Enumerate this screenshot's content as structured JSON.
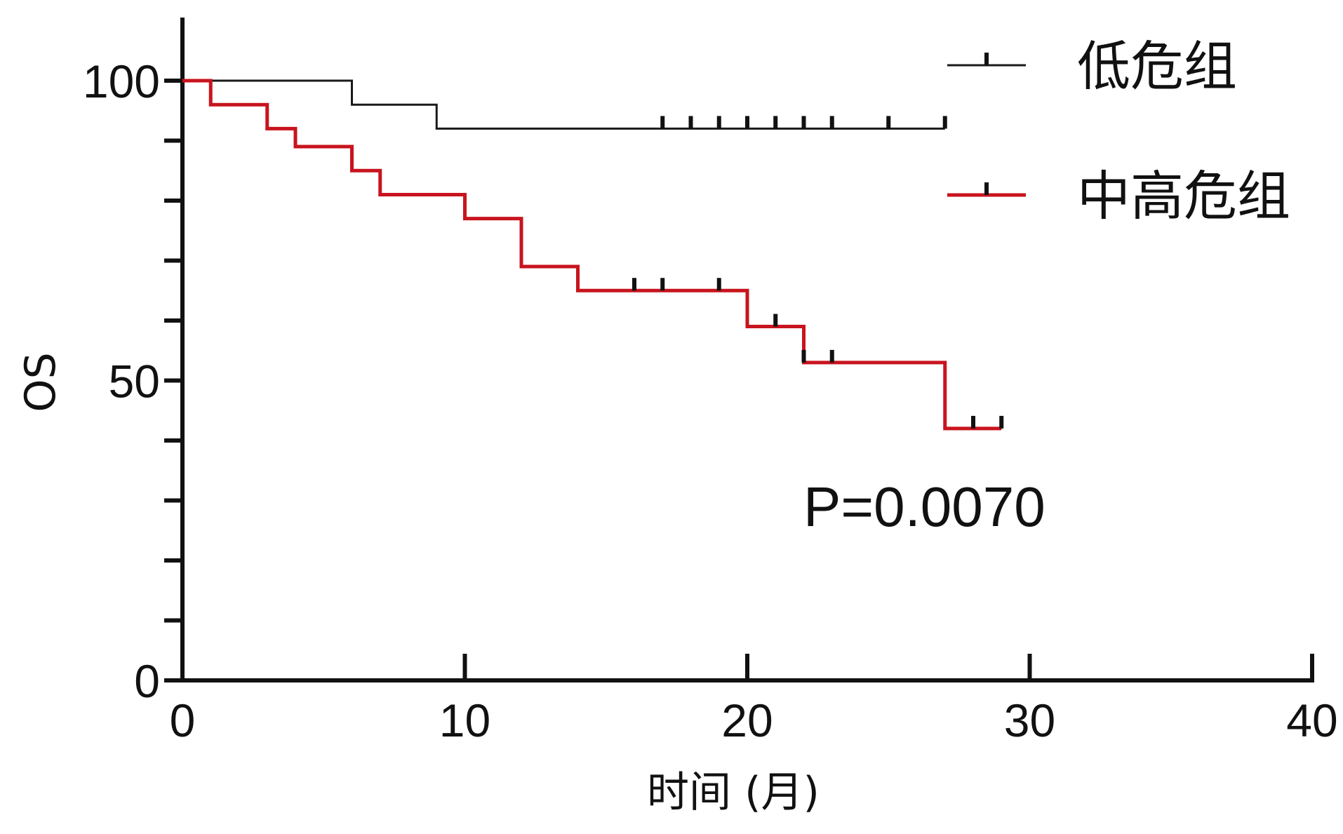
{
  "chart_data": {
    "type": "line",
    "subtype": "kaplan-meier",
    "title": "",
    "xlabel": "时间 (月)",
    "ylabel": "OS",
    "xlim": [
      0,
      40
    ],
    "ylim": [
      0,
      100
    ],
    "x_ticks": [
      0,
      10,
      20,
      30,
      40
    ],
    "y_ticks": [
      0,
      50,
      100
    ],
    "grid": false,
    "legend_position": "top-right",
    "annotation": "P=0.0070",
    "series": [
      {
        "name": "低危组",
        "color": "#1a1a1a",
        "steps": [
          [
            0,
            100
          ],
          [
            6,
            96
          ],
          [
            9,
            92
          ],
          [
            27,
            92
          ]
        ],
        "censored": [
          [
            17,
            92
          ],
          [
            18,
            92
          ],
          [
            19,
            92
          ],
          [
            20,
            92
          ],
          [
            21,
            92
          ],
          [
            22,
            92
          ],
          [
            23,
            92
          ],
          [
            25,
            92
          ],
          [
            27,
            92
          ]
        ]
      },
      {
        "name": "中高危组",
        "color": "#c8141e",
        "steps": [
          [
            0,
            100
          ],
          [
            1,
            96
          ],
          [
            3,
            92
          ],
          [
            4,
            89
          ],
          [
            6,
            85
          ],
          [
            7,
            81
          ],
          [
            10,
            77
          ],
          [
            12,
            69
          ],
          [
            14,
            65
          ],
          [
            20,
            59
          ],
          [
            22,
            53
          ],
          [
            27,
            42
          ],
          [
            29,
            42
          ]
        ],
        "censored": [
          [
            16,
            65
          ],
          [
            17,
            65
          ],
          [
            19,
            65
          ],
          [
            21,
            59
          ],
          [
            22,
            53
          ],
          [
            23,
            53
          ],
          [
            28,
            42
          ],
          [
            29,
            42
          ]
        ]
      }
    ]
  }
}
